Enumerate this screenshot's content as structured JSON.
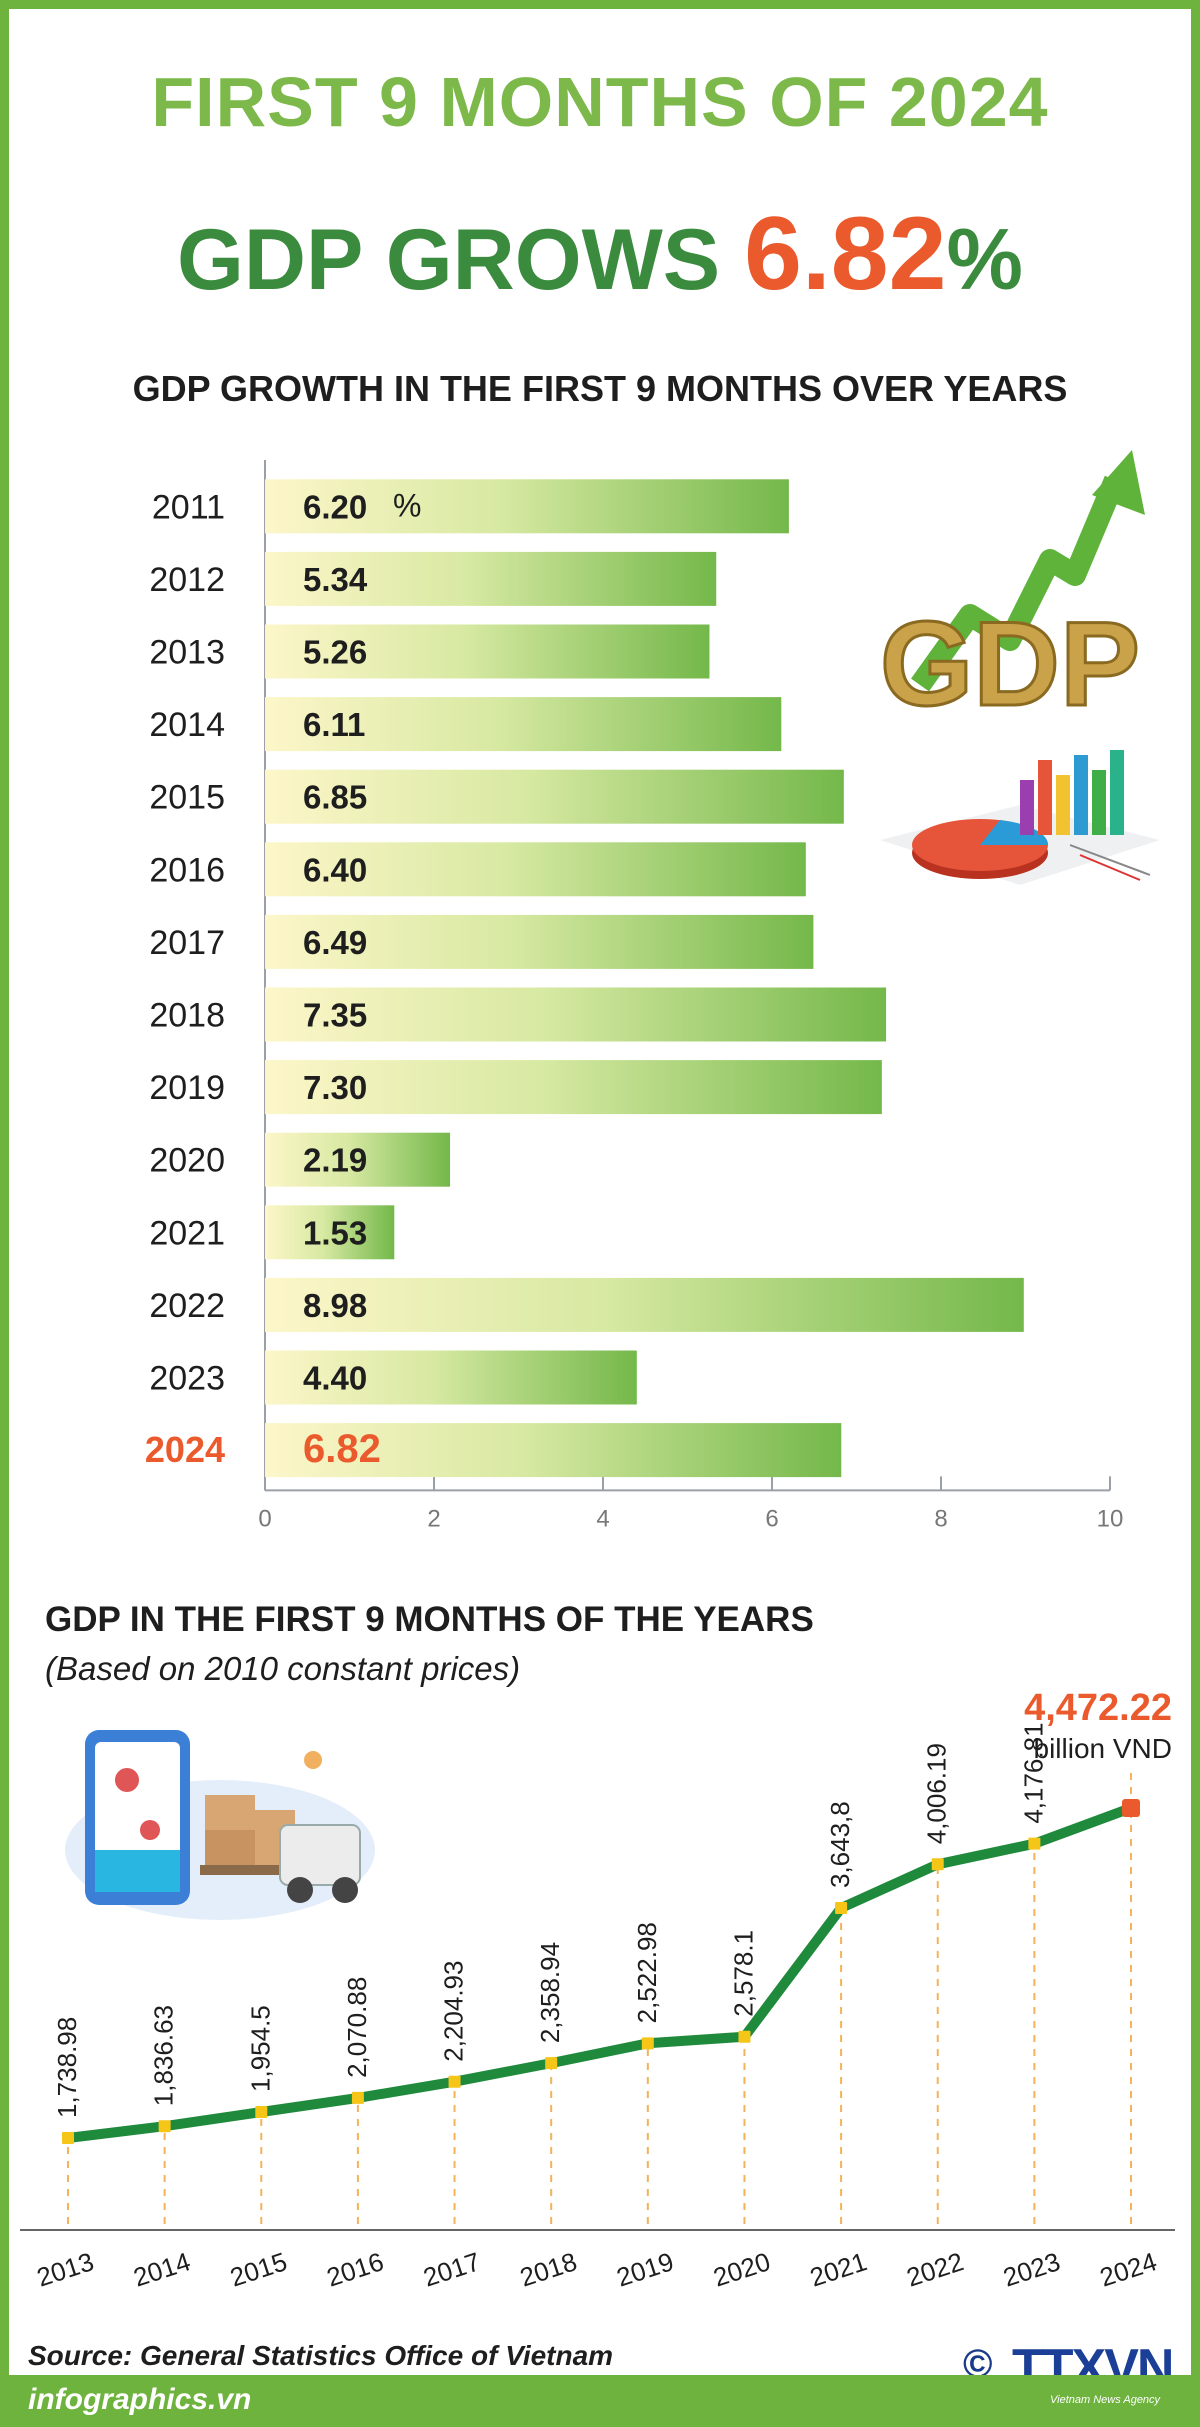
{
  "header": {
    "line1": "FIRST 9 MONTHS OF 2024",
    "line2_prefix": "GDP GROWS ",
    "line2_value": "6.82",
    "line2_suffix": "%"
  },
  "bar_section": {
    "title": "GDP GROWTH IN THE FIRST 9 MONTHS OVER YEARS"
  },
  "line_section": {
    "title": "GDP IN THE FIRST 9 MONTHS OF THE YEARS",
    "subtitle": "(Based on 2010 constant prices)",
    "highlight_value": "4,472.22",
    "highlight_unit": "billion VND"
  },
  "illustrations": {
    "gdp_3d_text": "GDP"
  },
  "footer": {
    "source": "Source: General Statistics Office of Vietnam",
    "site": "infographics.vn",
    "copyright_symbol": "©",
    "logo": "TTXVN",
    "logo_sub": "Vietnam News Agency"
  },
  "colors": {
    "green_dark": "#3b8b3f",
    "green_light": "#7cb94a",
    "accent_red": "#ea5a2c",
    "line_green": "#1f8a3c",
    "marker_yellow": "#f5c518"
  },
  "chart_data": [
    {
      "type": "bar",
      "orientation": "horizontal",
      "categories": [
        "2011",
        "2012",
        "2013",
        "2014",
        "2015",
        "2016",
        "2017",
        "2018",
        "2019",
        "2020",
        "2021",
        "2022",
        "2023",
        "2024"
      ],
      "values": [
        6.2,
        5.34,
        5.26,
        6.11,
        6.85,
        6.4,
        6.49,
        7.35,
        7.3,
        2.19,
        1.53,
        8.98,
        4.4,
        6.82
      ],
      "value_labels": [
        "6.20",
        "5.34",
        "5.26",
        "6.11",
        "6.85",
        "6.40",
        "6.49",
        "7.35",
        "7.30",
        "2.19",
        "1.53",
        "8.98",
        "4.40",
        "6.82"
      ],
      "unit_label": "%",
      "highlight_category": "2024",
      "xlim": [
        0,
        10
      ],
      "xticks": [
        0,
        2,
        4,
        6,
        8,
        10
      ],
      "title": "GDP GROWTH IN THE FIRST 9 MONTHS OVER YEARS"
    },
    {
      "type": "line",
      "x": [
        "2013",
        "2014",
        "2015",
        "2016",
        "2017",
        "2018",
        "2019",
        "2020",
        "2021",
        "2022",
        "2023",
        "2024"
      ],
      "values": [
        1738.98,
        1836.63,
        1954.5,
        2070.88,
        2204.93,
        2358.94,
        2522.98,
        2578.1,
        3643.8,
        4006.19,
        4176.81,
        4472.22
      ],
      "value_labels": [
        "1,738.98",
        "1,836.63",
        "1,954.5",
        "2,070.88",
        "2,204.93",
        "2,358.94",
        "2,522.98",
        "2,578.1",
        "3,643,8",
        "4,006.19",
        "4,176.81",
        "4,472.22"
      ],
      "title": "GDP IN THE FIRST 9 MONTHS OF THE YEARS",
      "subtitle": "(Based on 2010 constant prices)",
      "ylabel": "billion VND",
      "highlight_last": true
    }
  ]
}
